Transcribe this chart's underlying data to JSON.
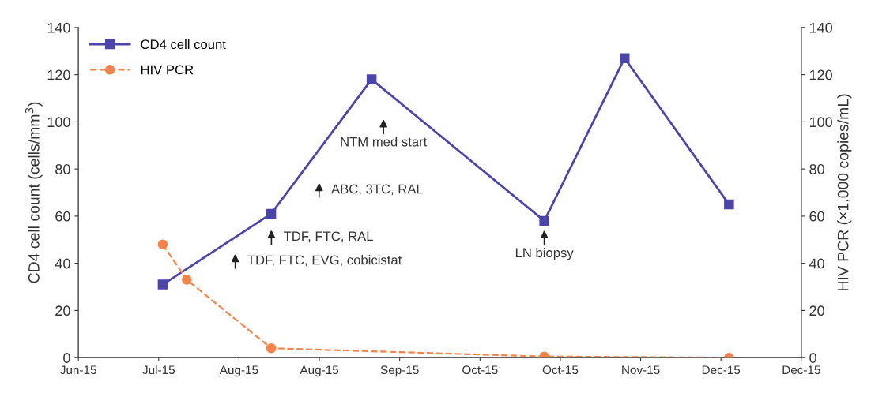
{
  "chart_data": {
    "type": "line",
    "ylabel": "CD4 cell count (cells/mm$^{3}$)",
    "y2label": "HIV PCR (×1,000 copies/mL)",
    "xlim": [
      "2015-06-30",
      "2015-12-27"
    ],
    "xticks": [
      {
        "value": "2015-06-30",
        "label": "Jun-15"
      },
      {
        "value": "2015-07-20",
        "label": "Jul-15"
      },
      {
        "value": "2015-08-09",
        "label": "Aug-15"
      },
      {
        "value": "2015-08-29",
        "label": "Aug-15"
      },
      {
        "value": "2015-09-18",
        "label": "Sep-15"
      },
      {
        "value": "2015-10-08",
        "label": "Oct-15"
      },
      {
        "value": "2015-10-28",
        "label": "Oct-15"
      },
      {
        "value": "2015-11-17",
        "label": "Nov-15"
      },
      {
        "value": "2015-12-07",
        "label": "Dec-15"
      },
      {
        "value": "2015-12-27",
        "label": "Dec-15"
      }
    ],
    "ylim": [
      0,
      140
    ],
    "yticks": [
      0,
      20,
      40,
      60,
      80,
      100,
      120,
      140
    ],
    "y2lim": [
      0,
      140
    ],
    "y2ticks": [
      0,
      20,
      40,
      60,
      80,
      100,
      120,
      140
    ],
    "grid": false,
    "legend": "top left",
    "series": [
      {
        "name": "CD4 cell count",
        "color": "#4b45a8",
        "marker": "square",
        "line_style": "solid",
        "x": [
          "2015-07-21",
          "2015-08-17",
          "2015-09-11",
          "2015-10-24",
          "2015-11-13",
          "2015-12-09"
        ],
        "values": [
          31,
          61,
          118,
          58,
          127,
          65
        ]
      },
      {
        "name": "HIV PCR",
        "color": "#f5844c",
        "marker": "circle",
        "line_style": "dashed",
        "axis": "y2",
        "x": [
          "2015-07-21",
          "2015-07-27",
          "2015-08-17",
          "2015-10-24",
          "2015-12-09"
        ],
        "values": [
          48,
          33,
          4,
          0.5,
          0
        ]
      }
    ],
    "annotations": [
      "TDF, FTC, EVG, cobicistat",
      "TDF, FTC, RAL",
      "ABC, 3TC, RAL",
      "NTM med start",
      {
        "text": "LN biopsy",
        "x": "2015-10-24",
        "y": 55
      }
    ]
  }
}
